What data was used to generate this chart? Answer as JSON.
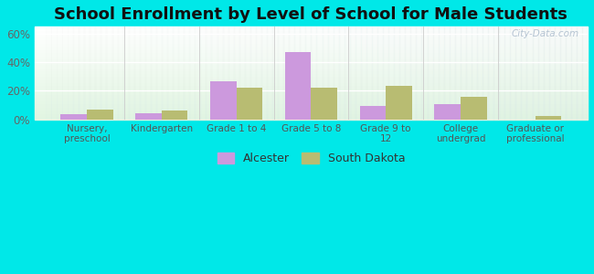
{
  "title": "School Enrollment by Level of School for Male Students",
  "categories": [
    "Nursery,\npreschool",
    "Kindergarten",
    "Grade 1 to 4",
    "Grade 5 to 8",
    "Grade 9 to\n12",
    "College\nundergrad",
    "Graduate or\nprofessional"
  ],
  "alcester_values": [
    3.5,
    4.0,
    26.5,
    47.0,
    9.5,
    11.0,
    0.0
  ],
  "south_dakota_values": [
    7.0,
    6.5,
    22.5,
    22.5,
    23.5,
    16.0,
    2.5
  ],
  "alcester_color": "#cc99dd",
  "south_dakota_color": "#b8bc72",
  "background_color": "#00e8e8",
  "title_fontsize": 13,
  "ylim": [
    0,
    65
  ],
  "yticks": [
    0,
    20,
    40,
    60
  ],
  "ytick_labels": [
    "0%",
    "20%",
    "40%",
    "60%"
  ],
  "bar_width": 0.35,
  "legend_labels": [
    "Alcester",
    "South Dakota"
  ],
  "watermark": "City-Data.com"
}
